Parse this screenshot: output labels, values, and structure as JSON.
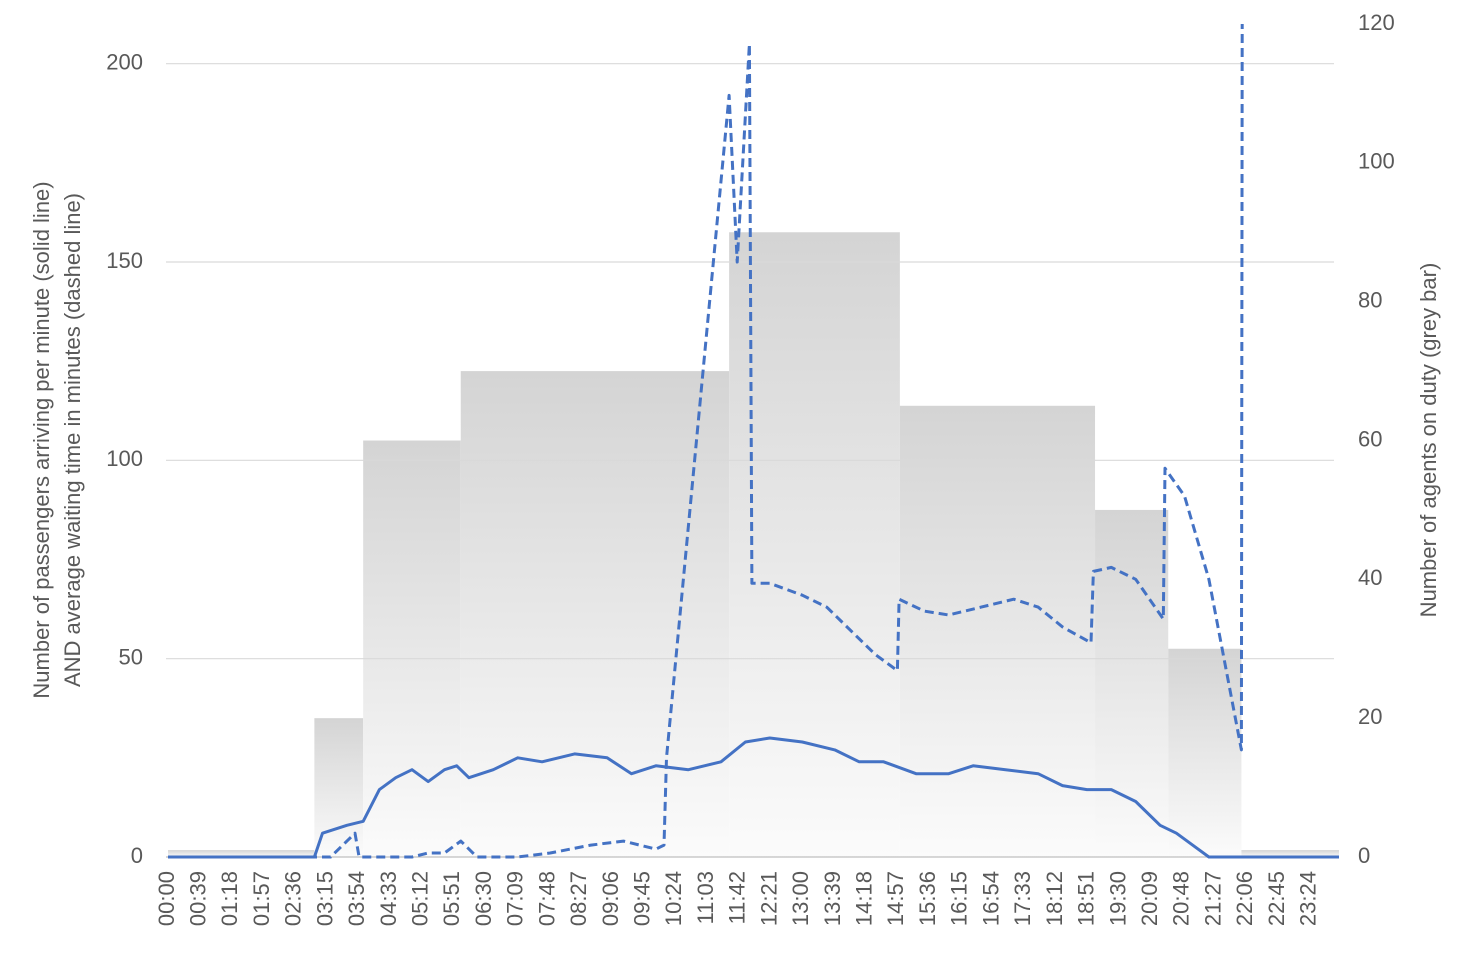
{
  "chart_data": {
    "type": "combo",
    "ylabel": [
      "Number of passengers arriving per minute (solid line)",
      "AND average waiting time in minutes (dashed line)"
    ],
    "y2label": "Number of agents on duty  (grey bar)",
    "xlim": [
      0,
      1440
    ],
    "xticks": [
      {
        "value": 0,
        "label": "00:00"
      },
      {
        "value": 39,
        "label": "00:39"
      },
      {
        "value": 78,
        "label": "01:18"
      },
      {
        "value": 117,
        "label": "01:57"
      },
      {
        "value": 156,
        "label": "02:36"
      },
      {
        "value": 195,
        "label": "03:15"
      },
      {
        "value": 234,
        "label": "03:54"
      },
      {
        "value": 273,
        "label": "04:33"
      },
      {
        "value": 312,
        "label": "05:12"
      },
      {
        "value": 351,
        "label": "05:51"
      },
      {
        "value": 390,
        "label": "06:30"
      },
      {
        "value": 429,
        "label": "07:09"
      },
      {
        "value": 468,
        "label": "07:48"
      },
      {
        "value": 507,
        "label": "08:27"
      },
      {
        "value": 546,
        "label": "09:06"
      },
      {
        "value": 585,
        "label": "09:45"
      },
      {
        "value": 624,
        "label": "10:24"
      },
      {
        "value": 663,
        "label": "11:03"
      },
      {
        "value": 702,
        "label": "11:42"
      },
      {
        "value": 741,
        "label": "12:21"
      },
      {
        "value": 780,
        "label": "13:00"
      },
      {
        "value": 819,
        "label": "13:39"
      },
      {
        "value": 858,
        "label": "14:18"
      },
      {
        "value": 897,
        "label": "14:57"
      },
      {
        "value": 936,
        "label": "15:36"
      },
      {
        "value": 975,
        "label": "16:15"
      },
      {
        "value": 1014,
        "label": "16:54"
      },
      {
        "value": 1053,
        "label": "17:33"
      },
      {
        "value": 1092,
        "label": "18:12"
      },
      {
        "value": 1131,
        "label": "18:51"
      },
      {
        "value": 1170,
        "label": "19:30"
      },
      {
        "value": 1209,
        "label": "20:09"
      },
      {
        "value": 1248,
        "label": "20:48"
      },
      {
        "value": 1287,
        "label": "21:27"
      },
      {
        "value": 1326,
        "label": "22:06"
      },
      {
        "value": 1365,
        "label": "22:45"
      },
      {
        "value": 1404,
        "label": "23:24"
      }
    ],
    "ylim": [
      0,
      210
    ],
    "yticks": [
      0,
      50,
      100,
      150,
      200
    ],
    "y2lim": [
      0,
      120
    ],
    "y2ticks": [
      0,
      20,
      40,
      60,
      80,
      100,
      120
    ],
    "grid": true,
    "bars": {
      "axis": "y2",
      "color": "#d4d4d4",
      "bins": [
        0,
        180,
        240,
        360,
        690,
        900,
        1140,
        1230,
        1320,
        1440
      ],
      "values": [
        1,
        20,
        60,
        70,
        90,
        65,
        50,
        30,
        1
      ]
    },
    "lines": [
      {
        "color": "#4472c4",
        "dashed": false,
        "x": [
          0,
          180,
          190,
          220,
          240,
          260,
          280,
          300,
          320,
          340,
          355,
          370,
          400,
          430,
          460,
          500,
          540,
          570,
          600,
          640,
          680,
          710,
          740,
          780,
          820,
          850,
          880,
          920,
          960,
          990,
          1030,
          1070,
          1100,
          1130,
          1160,
          1190,
          1220,
          1240,
          1260,
          1280,
          1440
        ],
        "values": [
          0,
          0,
          6,
          8,
          9,
          17,
          20,
          22,
          19,
          22,
          23,
          20,
          22,
          25,
          24,
          26,
          25,
          21,
          23,
          22,
          24,
          29,
          30,
          29,
          27,
          24,
          24,
          21,
          21,
          23,
          22,
          21,
          18,
          17,
          17,
          14,
          8,
          6,
          3,
          0,
          0
        ]
      },
      {
        "color": "#4472c4",
        "dashed": true,
        "x": [
          0,
          200,
          230,
          235,
          300,
          320,
          340,
          360,
          380,
          430,
          470,
          520,
          560,
          600,
          610,
          613,
          690,
          700,
          715,
          718,
          740,
          780,
          810,
          840,
          870,
          897,
          899,
          930,
          960,
          1000,
          1040,
          1070,
          1100,
          1135,
          1138,
          1160,
          1190,
          1224,
          1226,
          1250,
          1280,
          1320,
          1321
        ],
        "values": [
          0,
          0,
          6,
          0,
          0,
          1,
          1,
          4,
          0,
          0,
          1,
          3,
          4,
          2,
          3,
          25,
          192,
          150,
          205,
          69,
          69,
          66,
          63,
          57,
          51,
          47,
          65,
          62,
          61,
          63,
          65,
          63,
          58,
          54,
          72,
          73,
          70,
          60,
          98,
          91,
          70,
          27,
          210
        ]
      }
    ]
  }
}
